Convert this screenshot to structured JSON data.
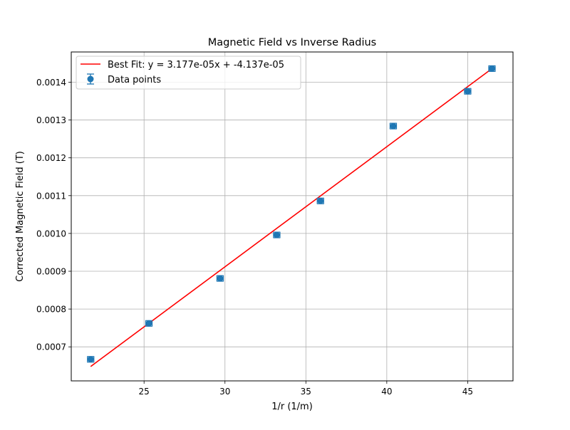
{
  "chart_data": {
    "type": "scatter",
    "title": "Magnetic Field vs Inverse Radius",
    "xlabel": "1/r (1/m)",
    "ylabel": "Corrected Magnetic Field (T)",
    "xlim": [
      20.5,
      47.8
    ],
    "ylim": [
      0.00061,
      0.00148
    ],
    "x_ticks": [
      25,
      30,
      35,
      40,
      45
    ],
    "x_tick_labels": [
      "25",
      "30",
      "35",
      "40",
      "45"
    ],
    "y_ticks": [
      0.0007,
      0.0008,
      0.0009,
      0.001,
      0.0011,
      0.0012,
      0.0013,
      0.0014
    ],
    "y_tick_labels": [
      "0.0007",
      "0.0008",
      "0.0009",
      "0.0010",
      "0.0011",
      "0.0012",
      "0.0013",
      "0.0014"
    ],
    "grid": true,
    "legend_position": "top-left",
    "series": [
      {
        "name": "Data points",
        "kind": "errorbar-scatter",
        "color": "#1f77b4",
        "x": [
          21.7,
          25.3,
          29.7,
          33.2,
          35.9,
          40.4,
          45.0,
          46.5
        ],
        "y": [
          0.000667,
          0.000762,
          0.000881,
          0.000996,
          0.001086,
          0.001284,
          0.001376,
          0.001436
        ],
        "xerr": [
          0.2,
          0.2,
          0.2,
          0.2,
          0.2,
          0.2,
          0.2,
          0.2
        ],
        "yerr": [
          7.5e-06,
          7.5e-06,
          7.5e-06,
          7.5e-06,
          7.5e-06,
          7.5e-06,
          7.5e-06,
          7.5e-06
        ]
      },
      {
        "name": "Best Fit: y = 3.177e-05x + -4.137e-05",
        "kind": "line",
        "color": "#ff0000",
        "slope": 3.177e-05,
        "intercept": -4.137e-05,
        "x_range": [
          21.7,
          46.5
        ]
      }
    ]
  }
}
